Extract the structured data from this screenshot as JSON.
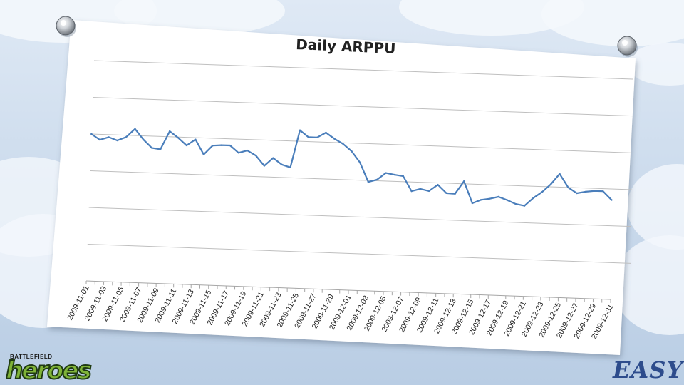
{
  "chart_data": {
    "type": "line",
    "title": "Daily ARPPU",
    "xlabel": "",
    "ylabel": "",
    "ylim": [
      0,
      6
    ],
    "y_tick_labels_shown": false,
    "grid": "horizontal",
    "legend": "none",
    "color": "#4a7ebb",
    "x_tick_labels": [
      "2009-11-01",
      "2009-11-03",
      "2009-11-05",
      "2009-11-07",
      "2009-11-09",
      "2009-11-11",
      "2009-11-13",
      "2009-11-15",
      "2009-11-17",
      "2009-11-19",
      "2009-11-21",
      "2009-11-23",
      "2009-11-25",
      "2009-11-27",
      "2009-11-29",
      "2009-12-01",
      "2009-12-03",
      "2009-12-05",
      "2009-12-07",
      "2009-12-09",
      "2009-12-11",
      "2009-12-13",
      "2009-12-15",
      "2009-12-17",
      "2009-12-19",
      "2009-12-21",
      "2009-12-23",
      "2009-12-25",
      "2009-12-27",
      "2009-12-29",
      "2009-12-31"
    ],
    "series": [
      {
        "values": [
          4.0,
          3.85,
          3.93,
          3.85,
          3.95,
          4.18,
          3.9,
          3.68,
          3.65,
          4.15,
          3.98,
          3.78,
          3.95,
          3.55,
          3.8,
          3.82,
          3.82,
          3.63,
          3.7,
          3.57,
          3.3,
          3.52,
          3.35,
          3.28,
          4.3,
          4.12,
          4.12,
          4.26,
          4.1,
          3.97,
          3.78,
          3.48,
          2.96,
          3.03,
          3.22,
          3.18,
          3.15,
          2.75,
          2.82,
          2.77,
          2.95,
          2.73,
          2.72,
          3.07,
          2.48,
          2.58,
          2.62,
          2.68,
          2.6,
          2.5,
          2.46,
          2.68,
          2.85,
          3.07,
          3.36,
          3.0,
          2.85,
          2.9,
          2.93,
          2.93,
          2.7
        ]
      }
    ]
  },
  "logos": {
    "left_small": "BATTLEFIELD",
    "left_big": "heroes",
    "right": "EASY"
  }
}
